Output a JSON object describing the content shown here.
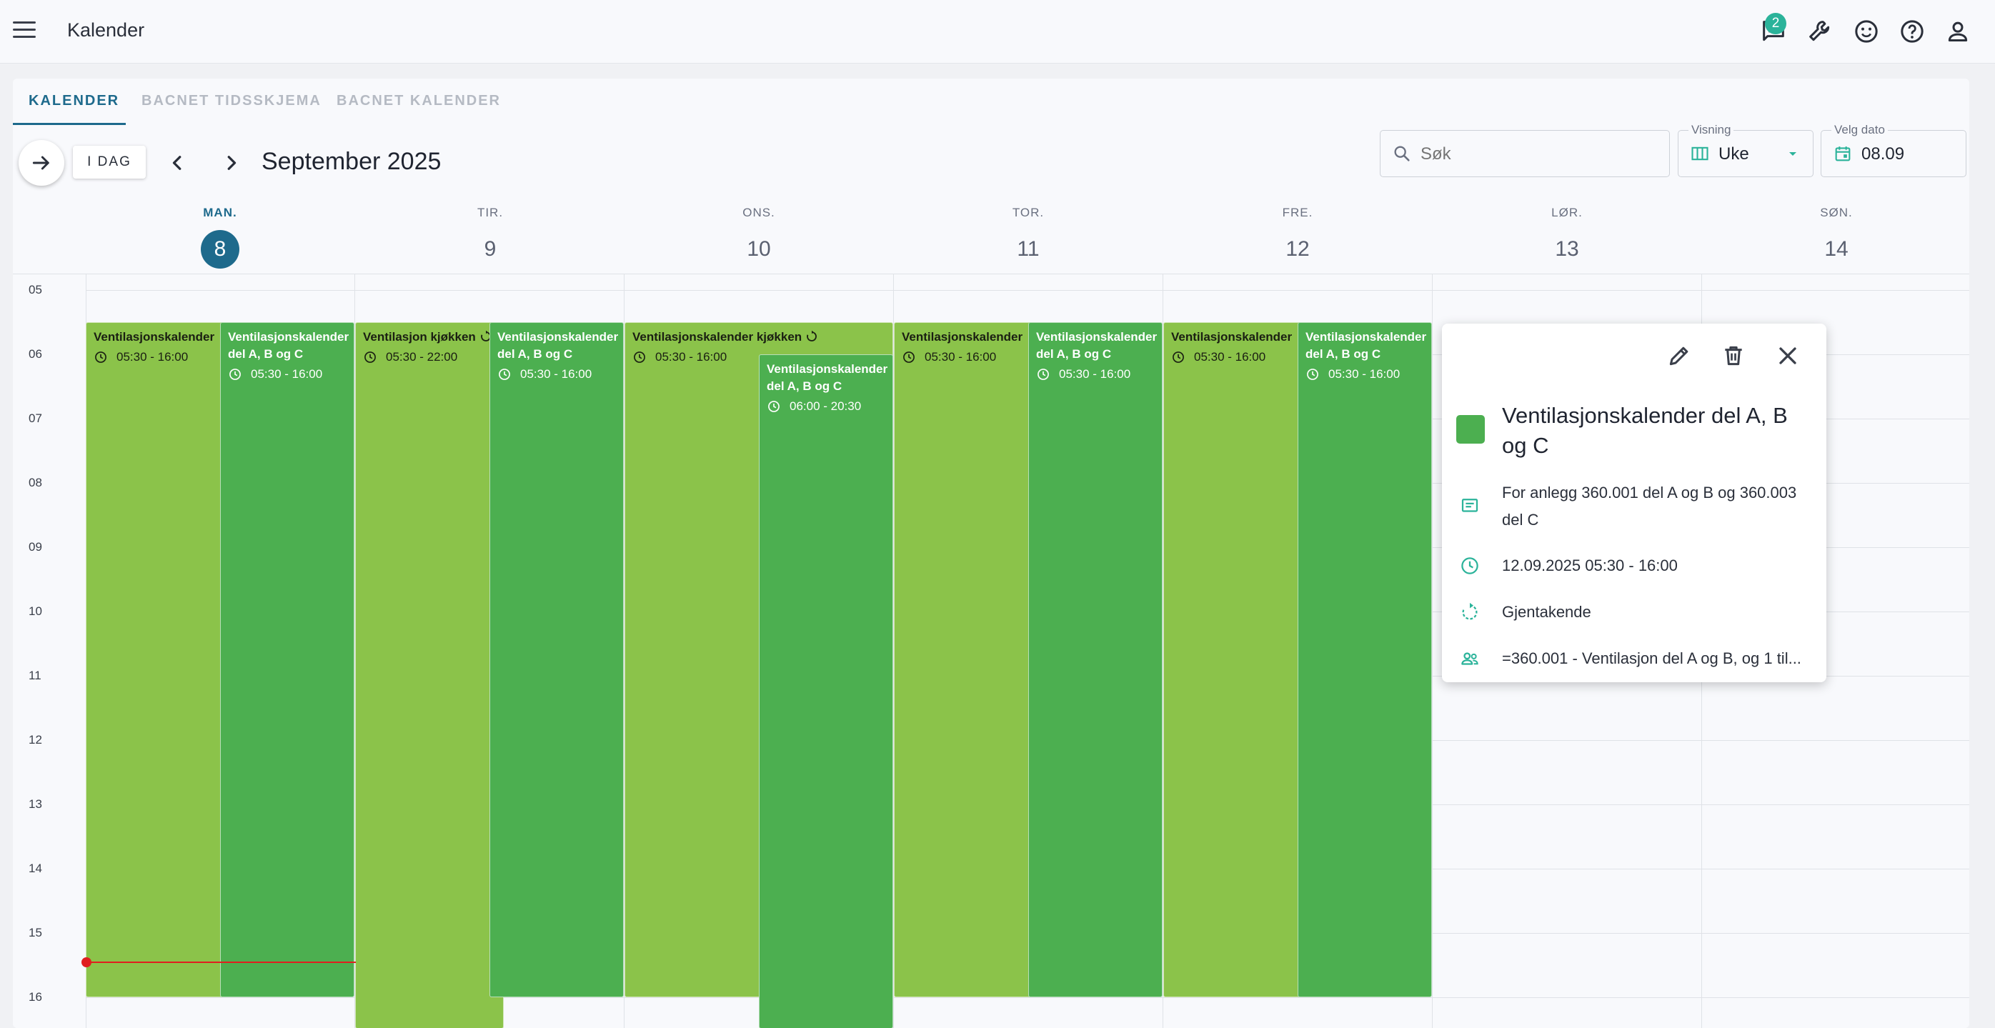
{
  "app": {
    "title": "Kalender",
    "notification_count": "2"
  },
  "tabs": [
    {
      "label": "KALENDER",
      "active": true
    },
    {
      "label": "BACNET TIDSSKJEMA",
      "active": false
    },
    {
      "label": "BACNET KALENDER",
      "active": false
    }
  ],
  "toolbar": {
    "today_label": "I DAG",
    "month_label": "September 2025",
    "search_placeholder": "Søk",
    "view_label": "Visning",
    "view_value": "Uke",
    "date_label": "Velg dato",
    "date_value": "08.09"
  },
  "days": [
    {
      "name": "MAN.",
      "num": "8",
      "today": true
    },
    {
      "name": "TIR.",
      "num": "9",
      "today": false
    },
    {
      "name": "ONS.",
      "num": "10",
      "today": false
    },
    {
      "name": "TOR.",
      "num": "11",
      "today": false
    },
    {
      "name": "FRE.",
      "num": "12",
      "today": false
    },
    {
      "name": "LØR.",
      "num": "13",
      "today": false
    },
    {
      "name": "SØN.",
      "num": "14",
      "today": false
    }
  ],
  "hours": [
    "05",
    "06",
    "07",
    "08",
    "09",
    "10",
    "11",
    "12",
    "13",
    "14",
    "15",
    "16"
  ],
  "events": [
    {
      "title": "Ventilasjonskalender",
      "time": "05:30 - 16:00"
    },
    {
      "title": "Ventilasjonskalender del A, B og C",
      "time": "05:30 - 16:00"
    },
    {
      "title": "Ventilasjon kjøkken",
      "time": "05:30 - 22:00"
    },
    {
      "title": "Ventilasjonskalender del A, B og C",
      "time": "05:30 - 16:00"
    },
    {
      "title": "Ventilasjonskalender kjøkken",
      "time": "05:30 - 16:00"
    },
    {
      "title": "Ventilasjonskalender del A, B og C",
      "time": "06:00 - 20:30"
    },
    {
      "title": "Ventilasjonskalender",
      "time": "05:30 - 16:00"
    },
    {
      "title": "Ventilasjonskalender del A, B og C",
      "time": "05:30 - 16:00"
    },
    {
      "title": "Ventilasjonskalender",
      "time": "05:30 - 16:00"
    },
    {
      "title": "Ventilasjonskalender del A, B og C",
      "time": "05:30 - 16:00"
    }
  ],
  "popover": {
    "title": "Ventilasjonskalender del A, B og C",
    "description": "For anlegg 360.001 del A og B og 360.003 del C",
    "datetime": "12.09.2025 05:30 - 16:00",
    "recurrence": "Gjentakende",
    "participants": "=360.001 - Ventilasjon del A og B, og 1 til...",
    "color": "#4caf50"
  },
  "colors": {
    "accent": "#1e6a8c",
    "event_light": "#8bc34a",
    "event_dark": "#4caf50",
    "now_line": "#e01e1e",
    "badge": "#2bb39a"
  }
}
